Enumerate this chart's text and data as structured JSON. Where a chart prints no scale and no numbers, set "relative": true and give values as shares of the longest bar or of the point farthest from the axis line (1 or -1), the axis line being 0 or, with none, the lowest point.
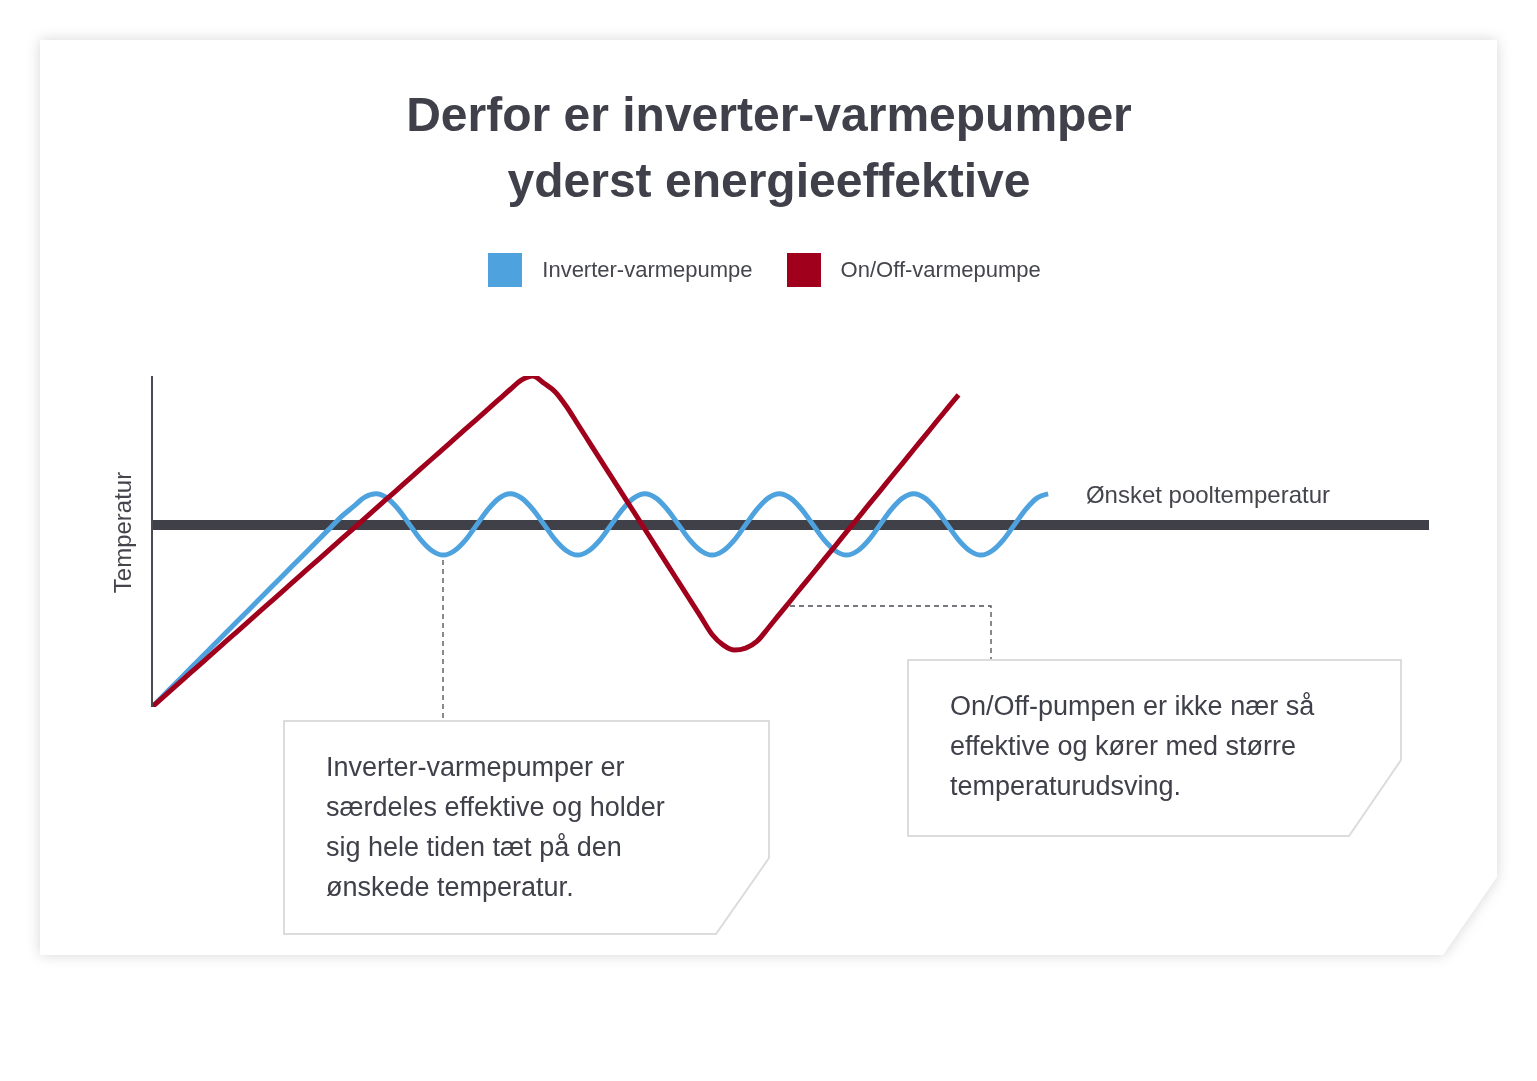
{
  "chart_data": {
    "type": "line",
    "title": "Derfor er inverter-varmepumper yderst energieeffektive",
    "ylabel": "Temperatur",
    "relative": true,
    "tick_labels": false,
    "legend": "top",
    "marker": "none",
    "line_style": "solid",
    "categories": [
      null,
      null,
      null,
      null,
      null,
      null,
      null,
      null,
      null,
      null,
      null,
      null,
      null,
      null,
      null,
      null,
      null,
      null,
      null,
      null,
      null,
      null,
      null,
      null,
      null,
      null,
      null,
      null,
      null,
      null,
      null,
      null,
      null,
      null,
      null,
      null,
      null,
      null,
      null,
      null,
      null,
      null,
      null,
      null,
      null,
      null,
      null,
      null,
      null,
      null,
      null,
      null,
      null,
      null,
      null,
      null,
      null,
      null,
      null,
      null,
      null,
      null,
      null,
      null,
      null,
      null,
      null,
      null,
      null,
      null,
      null,
      null,
      null,
      null,
      null,
      null,
      null,
      null,
      null,
      null,
      null,
      null,
      null,
      null,
      null,
      null,
      null,
      null,
      null,
      null,
      null,
      null,
      null,
      null,
      null,
      null,
      null,
      null,
      null,
      null,
      null,
      null,
      null,
      null,
      null,
      null,
      null,
      null,
      null,
      null,
      null,
      null,
      null,
      null,
      null
    ],
    "series": [
      {
        "name": "Inverter-varmepumpe",
        "color": "#4ea3df",
        "values": [
          0,
          0.034,
          0.068,
          0.102,
          0.136,
          0.17,
          0.204,
          0.238,
          0.272,
          0.306,
          0.34,
          0.374,
          0.408,
          0.442,
          0.476,
          0.51,
          0.544,
          0.578,
          0.606,
          0.634,
          0.644,
          0.631,
          0.597,
          0.551,
          0.505,
          0.472,
          0.459,
          0.472,
          0.505,
          0.551,
          0.597,
          0.631,
          0.644,
          0.631,
          0.597,
          0.551,
          0.505,
          0.472,
          0.459,
          0.472,
          0.505,
          0.551,
          0.597,
          0.631,
          0.644,
          0.631,
          0.597,
          0.551,
          0.505,
          0.472,
          0.459,
          0.472,
          0.505,
          0.551,
          0.597,
          0.631,
          0.644,
          0.631,
          0.597,
          0.551,
          0.505,
          0.472,
          0.459,
          0.472,
          0.505,
          0.551,
          0.597,
          0.631,
          0.644,
          0.631,
          0.597,
          0.551,
          0.505,
          0.472,
          0.459,
          0.472,
          0.505,
          0.551,
          0.597,
          0.631,
          0.644,
          null,
          null,
          null,
          null,
          null,
          null,
          null,
          null,
          null,
          null,
          null,
          null,
          null,
          null,
          null,
          null,
          null,
          null,
          null,
          null,
          null,
          null,
          null,
          null,
          null,
          null,
          null,
          null,
          null,
          null,
          null,
          null,
          null,
          null
        ]
      },
      {
        "name": "On/Off-varmepumpe",
        "color": "#a0001c",
        "values": [
          0,
          0.03,
          0.06,
          0.09,
          0.12,
          0.15,
          0.18,
          0.21,
          0.24,
          0.27,
          0.3,
          0.33,
          0.36,
          0.39,
          0.42,
          0.45,
          0.48,
          0.51,
          0.54,
          0.57,
          0.6,
          0.63,
          0.66,
          0.69,
          0.72,
          0.75,
          0.78,
          0.81,
          0.84,
          0.87,
          0.9,
          0.93,
          0.96,
          0.988,
          1,
          0.978,
          0.952,
          0.908,
          0.855,
          0.802,
          0.749,
          0.696,
          0.643,
          0.59,
          0.537,
          0.484,
          0.431,
          0.378,
          0.325,
          0.272,
          0.219,
          0.187,
          0.172,
          0.178,
          0.198,
          0.238,
          0.28,
          0.321,
          0.363,
          0.404,
          0.446,
          0.487,
          0.529,
          0.57,
          0.612,
          0.653,
          0.695,
          0.736,
          0.778,
          0.819,
          0.861,
          0.902,
          0.943,
          null,
          null,
          null,
          null,
          null,
          null,
          null,
          null,
          null,
          null,
          null,
          null,
          null,
          null,
          null,
          null,
          null,
          null,
          null,
          null,
          null,
          null,
          null,
          null,
          null,
          null,
          null,
          null,
          null,
          null,
          null,
          null,
          null,
          null,
          null,
          null,
          null,
          null,
          null,
          null,
          null,
          null
        ]
      }
    ],
    "ref_lines": [
      {
        "axis": "y",
        "value": 0.55,
        "label": "Ønsket pooltemperatur",
        "color": "#404049"
      }
    ],
    "annotations": [
      "Inverter-varmepumper er særdeles effektive og holder sig hele tiden tæt på den ønskede temperatur.",
      "On/Off-pumpen er ikke nær så effektive og kører med større temperaturudsving."
    ]
  }
}
